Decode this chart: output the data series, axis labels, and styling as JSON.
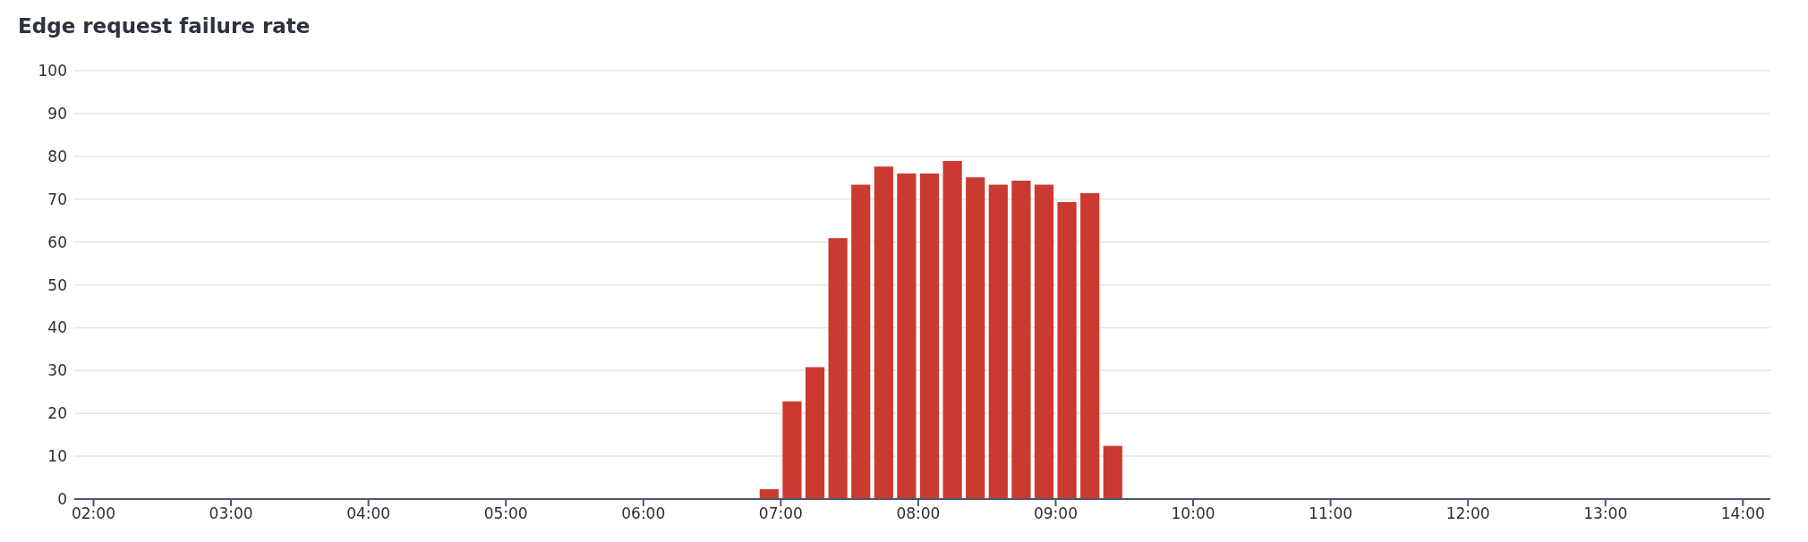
{
  "chart_data": {
    "type": "bar",
    "title": "Edge request failure rate",
    "x": [
      6.9167,
      7.0833,
      7.25,
      7.4167,
      7.5833,
      7.75,
      7.9167,
      8.0833,
      8.25,
      8.4167,
      8.5833,
      8.75,
      8.9167,
      9.0833,
      9.25,
      9.4167
    ],
    "values": [
      2.3,
      22.8,
      30.8,
      60.9,
      73.4,
      77.6,
      76.0,
      76.0,
      78.9,
      75.1,
      73.4,
      74.3,
      73.4,
      69.3,
      71.4,
      12.4
    ],
    "color": "#cb3a31",
    "xlim": [
      1.86,
      14.2
    ],
    "xticks": [
      {
        "value": 2,
        "label": "02:00"
      },
      {
        "value": 3,
        "label": "03:00"
      },
      {
        "value": 4,
        "label": "04:00"
      },
      {
        "value": 5,
        "label": "05:00"
      },
      {
        "value": 6,
        "label": "06:00"
      },
      {
        "value": 7,
        "label": "07:00"
      },
      {
        "value": 8,
        "label": "08:00"
      },
      {
        "value": 9,
        "label": "09:00"
      },
      {
        "value": 10,
        "label": "10:00"
      },
      {
        "value": 11,
        "label": "11:00"
      },
      {
        "value": 12,
        "label": "12:00"
      },
      {
        "value": 13,
        "label": "13:00"
      },
      {
        "value": 14,
        "label": "14:00"
      }
    ],
    "ylim": [
      0,
      100
    ],
    "yticks": [
      0,
      10,
      20,
      30,
      40,
      50,
      60,
      70,
      80,
      90,
      100
    ],
    "grid": "y"
  }
}
